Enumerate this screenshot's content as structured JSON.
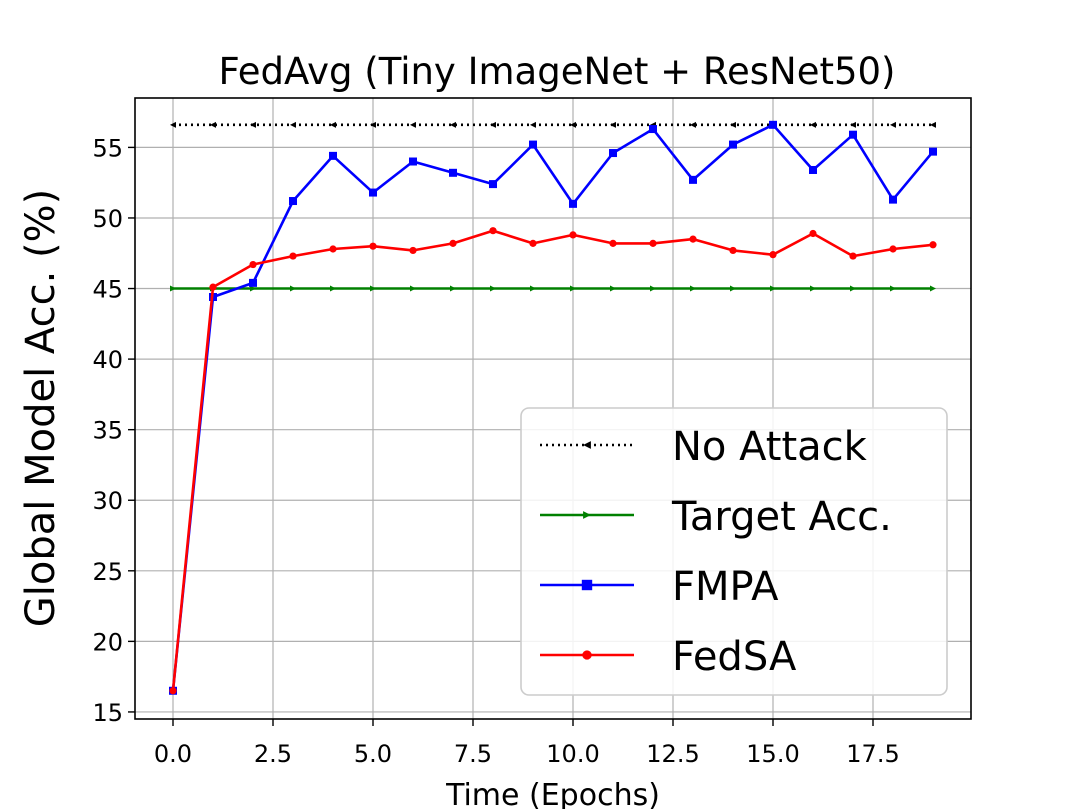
{
  "chart_data": {
    "type": "line",
    "title": "FedAvg (Tiny ImageNet + ResNet50)",
    "xlabel": "Time (Epochs)",
    "ylabel": "Global Model Acc. (%)",
    "xlim": [
      -0.95,
      19.95
    ],
    "ylim": [
      14.5,
      58.5
    ],
    "xticks": [
      0.0,
      2.5,
      5.0,
      7.5,
      10.0,
      12.5,
      15.0,
      17.5
    ],
    "xtick_labels": [
      "0.0",
      "2.5",
      "5.0",
      "7.5",
      "10.0",
      "12.5",
      "15.0",
      "17.5"
    ],
    "yticks": [
      15,
      20,
      25,
      30,
      35,
      40,
      45,
      50,
      55
    ],
    "ytick_labels": [
      "15",
      "20",
      "25",
      "30",
      "35",
      "40",
      "45",
      "50",
      "55"
    ],
    "grid": true,
    "legend_position": "lower-right",
    "x": [
      0,
      1,
      2,
      3,
      4,
      5,
      6,
      7,
      8,
      9,
      10,
      11,
      12,
      13,
      14,
      15,
      16,
      17,
      18,
      19
    ],
    "series": [
      {
        "name": "No Attack",
        "color": "#000000",
        "style": "dotted",
        "marker": "triangle-left",
        "values": [
          56.6,
          56.6,
          56.6,
          56.6,
          56.6,
          56.6,
          56.6,
          56.6,
          56.6,
          56.6,
          56.6,
          56.6,
          56.6,
          56.6,
          56.6,
          56.6,
          56.6,
          56.6,
          56.6,
          56.6
        ]
      },
      {
        "name": "Target Acc.",
        "color": "#008000",
        "style": "solid",
        "marker": "triangle-right",
        "values": [
          45.0,
          45.0,
          45.0,
          45.0,
          45.0,
          45.0,
          45.0,
          45.0,
          45.0,
          45.0,
          45.0,
          45.0,
          45.0,
          45.0,
          45.0,
          45.0,
          45.0,
          45.0,
          45.0,
          45.0
        ]
      },
      {
        "name": "FMPA",
        "color": "#0000ff",
        "style": "solid",
        "marker": "square",
        "values": [
          16.5,
          44.4,
          45.4,
          51.2,
          54.4,
          51.8,
          54.0,
          53.2,
          52.4,
          55.2,
          51.0,
          54.6,
          56.3,
          52.7,
          55.2,
          56.6,
          53.4,
          55.9,
          51.3,
          54.7
        ]
      },
      {
        "name": "FedSA",
        "color": "#ff0000",
        "style": "solid",
        "marker": "circle",
        "values": [
          16.5,
          45.1,
          46.7,
          47.3,
          47.8,
          48.0,
          47.7,
          48.2,
          49.1,
          48.2,
          48.8,
          48.2,
          48.2,
          48.5,
          47.7,
          47.4,
          48.9,
          47.3,
          47.8,
          48.1
        ]
      }
    ]
  }
}
